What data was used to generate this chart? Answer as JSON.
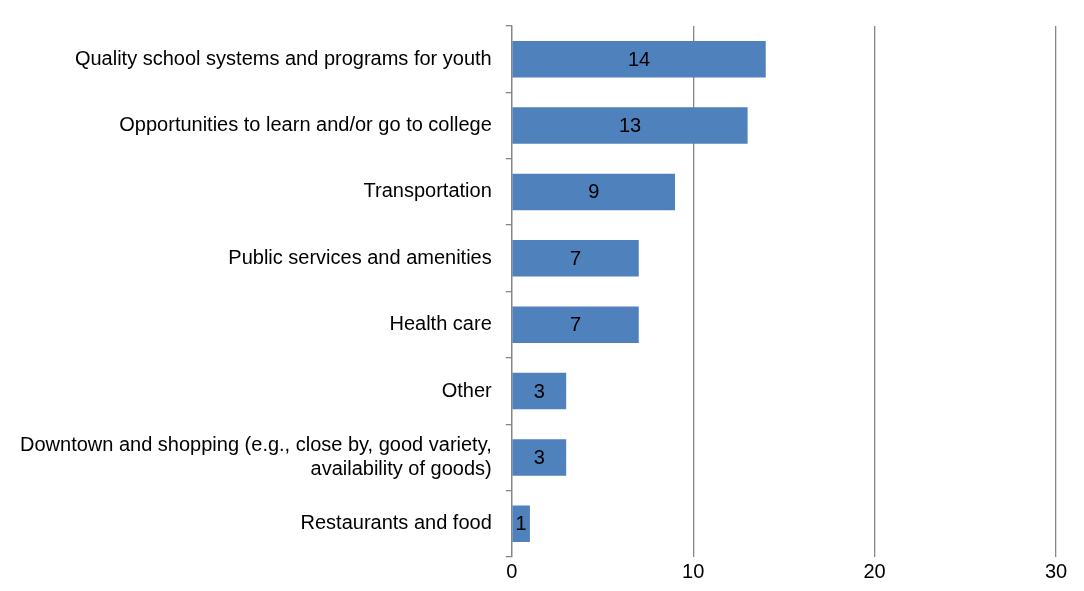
{
  "chart_data": {
    "type": "bar",
    "orientation": "horizontal",
    "categories": [
      "Quality school systems and programs for youth",
      "Opportunities to learn and/or go to college",
      "Transportation",
      "Public services and amenities",
      "Health care",
      "Other",
      "Downtown and shopping (e.g., close by, good variety, availability of goods)",
      "Restaurants and food"
    ],
    "values": [
      14,
      13,
      9,
      7,
      7,
      3,
      3,
      1
    ],
    "color": "#4f81bd",
    "xlim": [
      0,
      30
    ],
    "xticks": [
      0,
      10,
      20,
      30
    ],
    "grid": "x",
    "data_labels": true,
    "legend": false
  }
}
